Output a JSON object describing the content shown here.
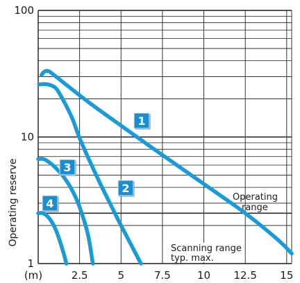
{
  "chart_data": {
    "type": "line",
    "title": "",
    "xlabel": "(m)",
    "ylabel": "Operating reserve",
    "y_scale": "log",
    "xlim": [
      0,
      15.3
    ],
    "ylim": [
      1,
      100
    ],
    "x_ticks": [
      {
        "value": 2.5,
        "label": "2.5"
      },
      {
        "value": 5,
        "label": "5"
      },
      {
        "value": 7.5,
        "label": "7.5"
      },
      {
        "value": 10,
        "label": "10"
      },
      {
        "value": 12.5,
        "label": "12.5"
      },
      {
        "value": 15,
        "label": "15"
      }
    ],
    "y_ticks": [
      {
        "value": 1,
        "label": "1"
      },
      {
        "value": 10,
        "label": "10"
      },
      {
        "value": 100,
        "label": "100"
      }
    ],
    "grid": true,
    "curve_color": "#1a9bd7",
    "badge_color": "#1a8fd0",
    "series": [
      {
        "label": "1",
        "points": [
          [
            0.2,
            31
          ],
          [
            0.4,
            33
          ],
          [
            0.65,
            33
          ],
          [
            1.0,
            30.5
          ],
          [
            3,
            19
          ],
          [
            5,
            12.3
          ],
          [
            7.5,
            7.2
          ],
          [
            10,
            4.25
          ],
          [
            12.5,
            2.5
          ],
          [
            14.5,
            1.53
          ],
          [
            15.3,
            1.2
          ]
        ]
      },
      {
        "label": "2",
        "points": [
          [
            0.05,
            26
          ],
          [
            0.4,
            26.2
          ],
          [
            0.8,
            25.5
          ],
          [
            1.2,
            23
          ],
          [
            2,
            14.6
          ],
          [
            2.5,
            9.8
          ],
          [
            3.5,
            5.0
          ],
          [
            4.5,
            2.7
          ],
          [
            5,
            2.0
          ],
          [
            5.5,
            1.5
          ],
          [
            6.2,
            1.0
          ]
        ]
      },
      {
        "label": "3",
        "points": [
          [
            0.0,
            6.7
          ],
          [
            0.3,
            6.7
          ],
          [
            0.6,
            6.4
          ],
          [
            1.0,
            5.8
          ],
          [
            1.5,
            4.9
          ],
          [
            2,
            3.9
          ],
          [
            2.5,
            2.8
          ],
          [
            3,
            1.7
          ],
          [
            3.3,
            1.0
          ]
        ]
      },
      {
        "label": "4",
        "points": [
          [
            0.0,
            2.5
          ],
          [
            0.3,
            2.5
          ],
          [
            0.7,
            2.25
          ],
          [
            1.1,
            1.8
          ],
          [
            1.5,
            1.25
          ],
          [
            1.7,
            1.0
          ]
        ]
      }
    ],
    "hline": {
      "value": 2.5,
      "label_lines": [
        "Operating",
        "range"
      ]
    },
    "note_lines": [
      "Scanning range",
      "typ. max."
    ]
  }
}
